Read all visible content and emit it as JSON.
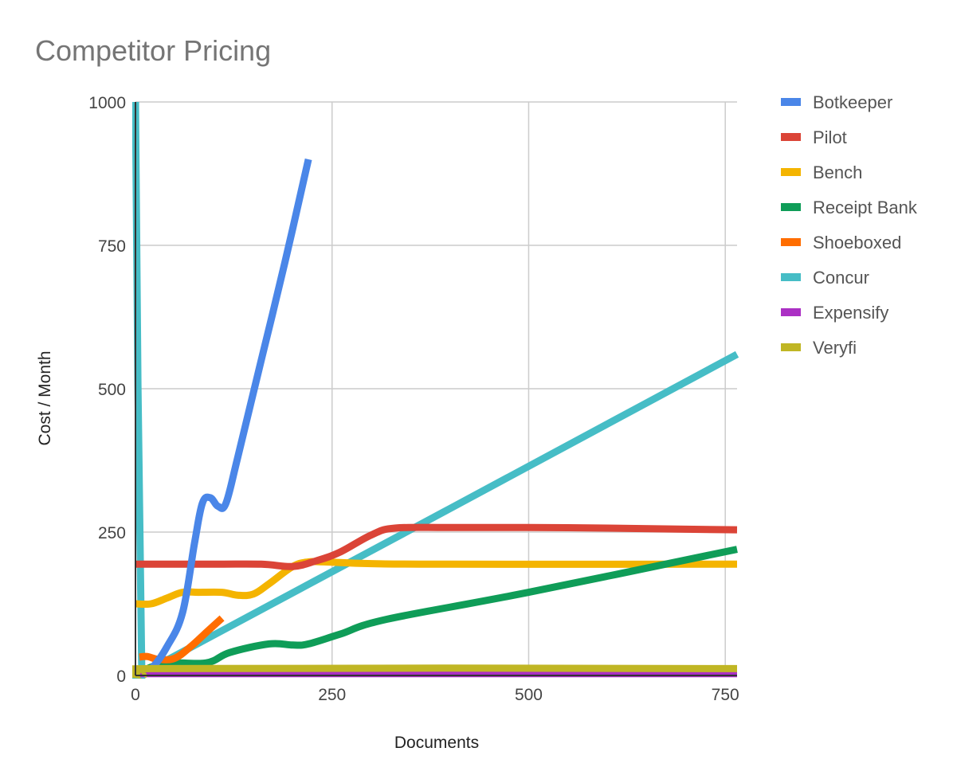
{
  "chart_data": {
    "type": "line",
    "title": "Competitor Pricing",
    "xlabel": "Documents",
    "ylabel": "Cost / Month",
    "xlim": [
      0,
      765
    ],
    "ylim": [
      0,
      1000
    ],
    "x_ticks": [
      0,
      250,
      500,
      750
    ],
    "x_tick_labels": [
      "0",
      "250",
      "500",
      "750"
    ],
    "y_ticks": [
      0,
      250,
      500,
      750,
      1000
    ],
    "y_tick_labels": [
      "0",
      "250",
      "500",
      "750",
      "1000"
    ],
    "grid": true,
    "legend_position": "right",
    "series": [
      {
        "name": "Botkeeper",
        "color": "#4a86e8",
        "points": [
          [
            5,
            5
          ],
          [
            20,
            12
          ],
          [
            40,
            50
          ],
          [
            60,
            110
          ],
          [
            75,
            230
          ],
          [
            85,
            300
          ],
          [
            95,
            310
          ],
          [
            105,
            295
          ],
          [
            115,
            300
          ],
          [
            130,
            380
          ],
          [
            160,
            550
          ],
          [
            190,
            720
          ],
          [
            220,
            900
          ]
        ]
      },
      {
        "name": "Pilot",
        "color": "#db4437",
        "points": [
          [
            0,
            194
          ],
          [
            100,
            194
          ],
          [
            160,
            194
          ],
          [
            200,
            190
          ],
          [
            230,
            200
          ],
          [
            260,
            215
          ],
          [
            300,
            245
          ],
          [
            330,
            257
          ],
          [
            400,
            258
          ],
          [
            500,
            258
          ],
          [
            600,
            257
          ],
          [
            700,
            255
          ],
          [
            765,
            254
          ]
        ]
      },
      {
        "name": "Bench",
        "color": "#f4b400",
        "points": [
          [
            0,
            125
          ],
          [
            20,
            125
          ],
          [
            40,
            135
          ],
          [
            60,
            145
          ],
          [
            80,
            145
          ],
          [
            110,
            145
          ],
          [
            130,
            140
          ],
          [
            150,
            142
          ],
          [
            170,
            160
          ],
          [
            200,
            190
          ],
          [
            220,
            198
          ],
          [
            240,
            198
          ],
          [
            300,
            195
          ],
          [
            400,
            194
          ],
          [
            765,
            194
          ]
        ]
      },
      {
        "name": "Receipt Bank",
        "color": "#0f9d58",
        "points": [
          [
            15,
            12
          ],
          [
            40,
            22
          ],
          [
            90,
            22
          ],
          [
            120,
            40
          ],
          [
            170,
            55
          ],
          [
            200,
            53
          ],
          [
            220,
            55
          ],
          [
            260,
            72
          ],
          [
            320,
            98
          ],
          [
            500,
            145
          ],
          [
            765,
            220
          ]
        ]
      },
      {
        "name": "Shoeboxed",
        "color": "#ff6d00",
        "points": [
          [
            5,
            32
          ],
          [
            15,
            33
          ],
          [
            30,
            28
          ],
          [
            50,
            30
          ],
          [
            70,
            50
          ],
          [
            90,
            75
          ],
          [
            110,
            100
          ]
        ]
      },
      {
        "name": "Concur",
        "color": "#46bdc6",
        "points": [
          [
            0,
            1000
          ],
          [
            8,
            10
          ],
          [
            20,
            12
          ],
          [
            765,
            560
          ]
        ]
      },
      {
        "name": "Expensify",
        "color": "#ab30c4",
        "points": [
          [
            0,
            3
          ],
          [
            765,
            3
          ]
        ]
      },
      {
        "name": "Veryfi",
        "color": "#c0b624",
        "points": [
          [
            10,
            0
          ],
          [
            20,
            12
          ],
          [
            765,
            12
          ]
        ]
      }
    ]
  }
}
